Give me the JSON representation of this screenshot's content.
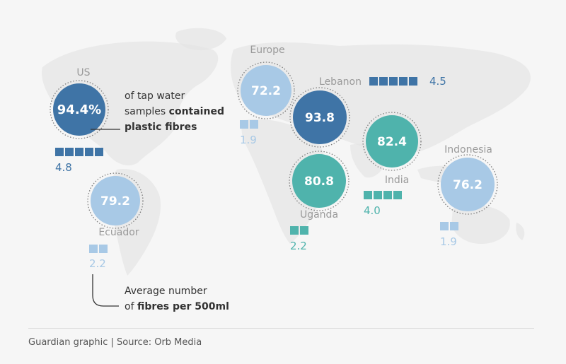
{
  "chart_data": {
    "type": "bubble-map",
    "title": "",
    "metric_primary": "of tap water samples contained plastic fibres",
    "metric_secondary": "Average number of fibres per 500ml",
    "scale_max_squares": 5,
    "locations": [
      {
        "name": "US",
        "pct": 94.4,
        "pct_label": "94.4%",
        "fibres": 4.8,
        "fibres_label": "4.8",
        "shade": "dark"
      },
      {
        "name": "Ecuador",
        "pct": 79.2,
        "pct_label": "79.2",
        "fibres": 2.2,
        "fibres_label": "2.2",
        "shade": "light"
      },
      {
        "name": "Europe",
        "pct": 72.2,
        "pct_label": "72.2",
        "fibres": 1.9,
        "fibres_label": "1.9",
        "shade": "light"
      },
      {
        "name": "Lebanon",
        "pct": 93.8,
        "pct_label": "93.8",
        "fibres": 4.5,
        "fibres_label": "4.5",
        "shade": "dark"
      },
      {
        "name": "Uganda",
        "pct": 80.8,
        "pct_label": "80.8",
        "fibres": 2.2,
        "fibres_label": "2.2",
        "shade": "teal"
      },
      {
        "name": "India",
        "pct": 82.4,
        "pct_label": "82.4",
        "fibres": 4.0,
        "fibres_label": "4.0",
        "shade": "teal"
      },
      {
        "name": "Indonesia",
        "pct": 76.2,
        "pct_label": "76.2",
        "fibres": 1.9,
        "fibres_label": "1.9",
        "shade": "light"
      }
    ]
  },
  "annotations": {
    "pct_note_line1": "of tap water",
    "pct_note_line2_a": "samples ",
    "pct_note_line2_b": "contained",
    "pct_note_line3": "plastic fibres",
    "fibre_note_line1": "Average number",
    "fibre_note_line2_a": "of ",
    "fibre_note_line2_b": "fibres per 500ml"
  },
  "colors": {
    "dark": "#3f74a6",
    "light": "#a8c9e6",
    "teal": "#4fb3ac",
    "map_land": "#e2e2e2",
    "text_label": "#9a9a9a",
    "text_value_dark": "#3f74a6",
    "text_value_light": "#a8c9e6",
    "text_value_teal": "#4fb3ac"
  },
  "footer": {
    "source": "Guardian graphic | Source: Orb Media"
  }
}
